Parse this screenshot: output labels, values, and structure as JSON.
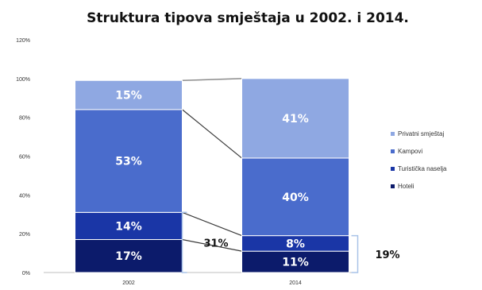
{
  "chart_data": {
    "type": "bar",
    "stacked": true,
    "title": "Struktura tipova smještaja u 2002. i 2014.",
    "categories": [
      "2002",
      "2014"
    ],
    "series": [
      {
        "name": "Hoteli",
        "color": "#0c1b6b",
        "values": [
          17,
          11
        ],
        "labels": [
          "17%",
          "11%"
        ]
      },
      {
        "name": "Turistička naselja",
        "color": "#1a36a6",
        "values": [
          14,
          8
        ],
        "labels": [
          "14%",
          "8%"
        ]
      },
      {
        "name": "Kampovi",
        "color": "#4a6ccc",
        "values": [
          53,
          40
        ],
        "labels": [
          "53%",
          "40%"
        ]
      },
      {
        "name": "Privatni smještaj",
        "color": "#8fa8e2",
        "values": [
          15,
          41
        ],
        "labels": [
          "15%",
          "41%"
        ]
      }
    ],
    "ylim": [
      0,
      120
    ],
    "yticks": [
      0,
      20,
      40,
      60,
      80,
      100,
      120
    ],
    "ytick_labels": [
      "0%",
      "20%",
      "40%",
      "60%",
      "80%",
      "100%",
      "120%"
    ],
    "grid": false,
    "legend": "right",
    "annotations": [
      {
        "text": "31%",
        "category": "2002",
        "bracket": [
          0,
          31
        ]
      },
      {
        "text": "19%",
        "category": "2014",
        "bracket": [
          0,
          19
        ]
      }
    ]
  }
}
